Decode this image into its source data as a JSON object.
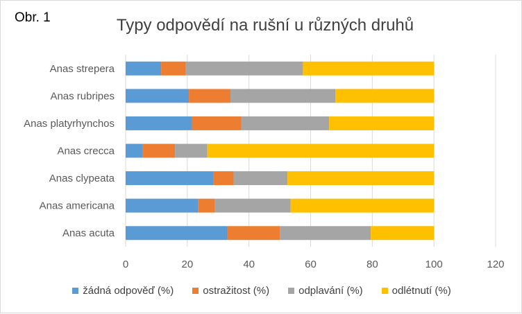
{
  "figure_label": "Obr. 1",
  "chart_data": {
    "type": "bar",
    "orientation": "horizontal",
    "stacked": true,
    "title": "Typy odpovědí na rušní u různých druhů",
    "xlabel": "",
    "ylabel": "",
    "xlim": [
      0,
      120
    ],
    "xticks": [
      0,
      20,
      40,
      60,
      80,
      100,
      120
    ],
    "grid": true,
    "legend_position": "bottom",
    "categories": [
      "Anas strepera",
      "Anas rubripes",
      "Anas platyrhynchos",
      "Anas crecca",
      "Anas clypeata",
      "Anas americana",
      "Anas acuta"
    ],
    "series": [
      {
        "name": "žádná odpověď (%)",
        "color": "#5b9bd5",
        "values": [
          11.5,
          20.5,
          21.5,
          5.5,
          28.5,
          23.5,
          33
        ]
      },
      {
        "name": "ostražitost (%)",
        "color": "#ed7d31",
        "values": [
          8,
          13.5,
          16,
          10.5,
          6.5,
          5.5,
          17
        ]
      },
      {
        "name": "odplavání (%)",
        "color": "#a5a5a5",
        "values": [
          38,
          34,
          28.5,
          10.5,
          17.5,
          24.5,
          29.5
        ]
      },
      {
        "name": "odlétnutí (%)",
        "color": "#ffc000",
        "values": [
          42.5,
          32,
          34,
          73.5,
          47.5,
          46.5,
          20.5
        ]
      }
    ]
  }
}
